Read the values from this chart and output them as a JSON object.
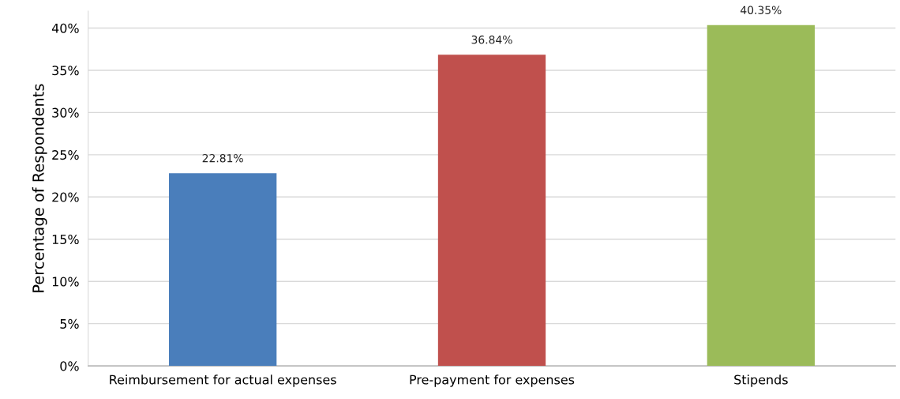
{
  "chart_data": {
    "type": "bar",
    "ylabel": "Percentage of Respondents",
    "categories": [
      "Reimbursement for actual expenses",
      "Pre-payment for expenses",
      "Stipends"
    ],
    "values": [
      22.81,
      36.84,
      40.35
    ],
    "colors": [
      "#4a7ebb",
      "#c0504d",
      "#9bbb59"
    ],
    "value_labels": [
      "22.81%",
      "36.84%",
      "40.35%"
    ],
    "ylim": [
      0,
      42
    ],
    "yticks": [
      {
        "value": 0,
        "label": "0%"
      },
      {
        "value": 5,
        "label": "5%"
      },
      {
        "value": 10,
        "label": "10%"
      },
      {
        "value": 15,
        "label": "15%"
      },
      {
        "value": 20,
        "label": "20%"
      },
      {
        "value": 25,
        "label": "25%"
      },
      {
        "value": 30,
        "label": "30%"
      },
      {
        "value": 35,
        "label": "35%"
      },
      {
        "value": 40,
        "label": "40%"
      }
    ],
    "grid": "y",
    "legend": false
  }
}
